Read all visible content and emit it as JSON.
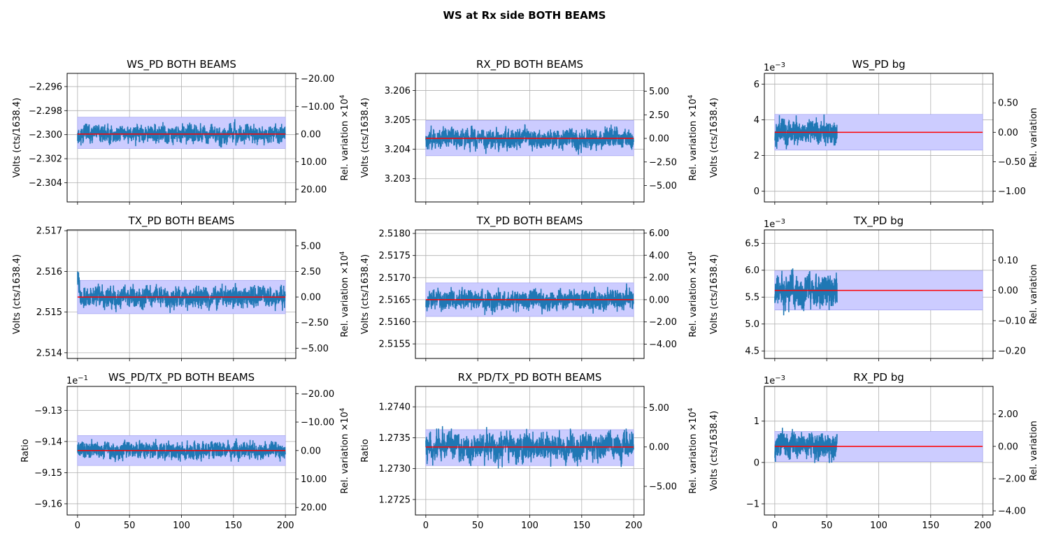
{
  "suptitle": "WS at Rx side BOTH BEAMS",
  "colors": {
    "series": "#1f77b4",
    "mean_line": "#ff0000",
    "band": "#ccccff",
    "band_edge": "#9999ee",
    "grid": "#b0b0b0"
  },
  "chart_data": [
    {
      "type": "line",
      "title": "WS_PD BOTH BEAMS",
      "ylabel": "Volts (cts/1638.4)",
      "ylabel_right": "Rel. variation ×10",
      "ylabel_right_exp": "4",
      "offset_text": "",
      "offset_exp": "",
      "xlim": [
        -10,
        210
      ],
      "ylim": [
        -2.3056,
        -2.2949
      ],
      "xticks": [
        0,
        50,
        100,
        150,
        200
      ],
      "xticklabels": [],
      "yticks": [
        -2.296,
        -2.298,
        -2.3,
        -2.302,
        -2.304
      ],
      "yticklabels": [
        "−2.296",
        "−2.298",
        "−2.300",
        "−2.302",
        "−2.304"
      ],
      "yticks_right_values": [
        -20,
        -10,
        0,
        10,
        20
      ],
      "yticks_right_labels": [
        "−20.00",
        "−10.00",
        "0.00",
        "10.00",
        "20.00"
      ],
      "right_scale": -4.35,
      "x_range": [
        0,
        200
      ],
      "mean": -2.29995,
      "band": [
        -2.30115,
        -2.29855
      ],
      "amplitude": 0.0013,
      "seed": 11
    },
    {
      "type": "line",
      "title": "RX_PD BOTH BEAMS",
      "ylabel": "Volts (cts/1638.4)",
      "ylabel_right": "Rel. variation ×10",
      "ylabel_right_exp": "4",
      "offset_text": "",
      "offset_exp": "",
      "xlim": [
        -10,
        210
      ],
      "ylim": [
        3.20221,
        3.20658
      ],
      "xticks": [
        0,
        50,
        100,
        150,
        200
      ],
      "xticklabels": [],
      "yticks": [
        3.206,
        3.205,
        3.204,
        3.203
      ],
      "yticklabels": [
        "3.206",
        "3.205",
        "3.204",
        "3.203"
      ],
      "yticks_right_values": [
        5,
        2.5,
        0,
        -2.5,
        -5
      ],
      "yticks_right_labels": [
        "5.00",
        "2.50",
        "0.00",
        "−2.50",
        "−5.00"
      ],
      "right_scale": 3.1214,
      "x_range": [
        0,
        200
      ],
      "mean": 3.20437,
      "band": [
        3.20378,
        3.20498
      ],
      "amplitude": 0.0006,
      "seed": 23
    },
    {
      "type": "line",
      "title": "WS_PD bg",
      "ylabel": "Volts (cts/1638.4)",
      "ylabel_right": "Rel. variation",
      "ylabel_right_exp": "",
      "offset_text": "1e",
      "offset_exp": "−3",
      "xlim": [
        -10,
        210
      ],
      "ylim": [
        -0.6,
        6.6
      ],
      "xticks": [
        0,
        50,
        100,
        150,
        200
      ],
      "xticklabels": [],
      "yticks": [
        6,
        4,
        2,
        0
      ],
      "yticklabels": [
        "6",
        "4",
        "2",
        "0"
      ],
      "yticks_right_values": [
        0.5,
        0,
        -0.5,
        -1.0
      ],
      "yticks_right_labels": [
        "0.50",
        "0.00",
        "−0.50",
        "−1.00"
      ],
      "right_scale": 0.00303,
      "x_range": [
        0,
        60
      ],
      "mean": 3.3,
      "band": [
        2.3,
        4.3
      ],
      "amplitude": 1.2,
      "seed": 37
    },
    {
      "type": "line",
      "title": "TX_PD BOTH BEAMS",
      "ylabel": "Volts (cts/1638.4)",
      "ylabel_right": "Rel. variation ×10",
      "ylabel_right_exp": "4",
      "offset_text": "",
      "offset_exp": "",
      "xlim": [
        -10,
        210
      ],
      "ylim": [
        2.51386,
        2.51702
      ],
      "xticks": [
        0,
        50,
        100,
        150,
        200
      ],
      "xticklabels": [],
      "yticks": [
        2.517,
        2.516,
        2.515,
        2.514
      ],
      "yticklabels": [
        "2.517",
        "2.516",
        "2.515",
        "2.514"
      ],
      "yticks_right_values": [
        5,
        2.5,
        0,
        -2.5,
        -5
      ],
      "yticks_right_labels": [
        "5.00",
        "2.50",
        "0.00",
        "−2.50",
        "−5.00"
      ],
      "right_scale": 3.975,
      "x_range": [
        0,
        200
      ],
      "mean": 2.51537,
      "band": [
        2.51496,
        2.51578
      ],
      "amplitude": 0.00045,
      "seed": 41
    },
    {
      "type": "line",
      "title": "TX_PD BOTH BEAMS",
      "ylabel": "Volts (cts/1638.4)",
      "ylabel_right": "Rel. variation ×10",
      "ylabel_right_exp": "4",
      "offset_text": "",
      "offset_exp": "",
      "xlim": [
        -10,
        210
      ],
      "ylim": [
        2.51517,
        2.51808
      ],
      "xticks": [
        0,
        50,
        100,
        150,
        200
      ],
      "xticklabels": [],
      "yticks": [
        2.518,
        2.5175,
        2.517,
        2.5165,
        2.516,
        2.5155
      ],
      "yticklabels": [
        "2.5180",
        "2.5175",
        "2.5170",
        "2.5165",
        "2.5160",
        "2.5155"
      ],
      "yticks_right_values": [
        6,
        4,
        2,
        0,
        -2,
        -4
      ],
      "yticks_right_labels": [
        "6.00",
        "4.00",
        "2.00",
        "0.00",
        "−2.00",
        "−4.00"
      ],
      "right_scale": 3.975,
      "x_range": [
        0,
        200
      ],
      "mean": 2.5165,
      "band": [
        2.51612,
        2.51688
      ],
      "amplitude": 0.0004,
      "seed": 53
    },
    {
      "type": "line",
      "title": "TX_PD bg",
      "ylabel": "Volts (cts/1638.4)",
      "ylabel_right": "Rel. variation",
      "ylabel_right_exp": "",
      "offset_text": "1e",
      "offset_exp": "−3",
      "xlim": [
        -10,
        210
      ],
      "ylim": [
        4.36,
        6.75
      ],
      "xticks": [
        0,
        50,
        100,
        150,
        200
      ],
      "xticklabels": [],
      "yticks": [
        6.5,
        6.0,
        5.5,
        5.0,
        4.5
      ],
      "yticklabels": [
        "6.5",
        "6.0",
        "5.5",
        "5.0",
        "4.5"
      ],
      "yticks_right_values": [
        0.1,
        0,
        -0.1,
        -0.2
      ],
      "yticks_right_labels": [
        "0.10",
        "0.00",
        "−0.10",
        "−0.20"
      ],
      "right_scale": 0.005625,
      "x_range": [
        0,
        60
      ],
      "mean": 5.625,
      "band": [
        5.26,
        5.99
      ],
      "amplitude": 0.55,
      "seed": 67
    },
    {
      "type": "line",
      "title": "WS_PD/TX_PD BOTH BEAMS",
      "ylabel": "Ratio",
      "ylabel_right": "Rel. variation ×10",
      "ylabel_right_exp": "4",
      "offset_text": "1e",
      "offset_exp": "−1",
      "xlim": [
        -10,
        210
      ],
      "ylim": [
        -9.1636,
        -9.1223
      ],
      "xticks": [
        0,
        50,
        100,
        150,
        200
      ],
      "xticklabels": [
        "0",
        "50",
        "100",
        "150",
        "200"
      ],
      "yticks": [
        -9.13,
        -9.14,
        -9.15,
        -9.16
      ],
      "yticklabels": [
        "−9.13",
        "−9.14",
        "−9.15",
        "−9.16"
      ],
      "yticks_right_values": [
        -20,
        -10,
        0,
        10,
        20
      ],
      "yticks_right_labels": [
        "−20.00",
        "−10.00",
        "0.00",
        "10.00",
        "20.00"
      ],
      "right_scale": -18.29,
      "x_range": [
        0,
        200
      ],
      "mean": -9.1429,
      "band": [
        -9.1477,
        -9.1381
      ],
      "amplitude": 0.0048,
      "seed": 71
    },
    {
      "type": "line",
      "title": "RX_PD/TX_PD BOTH BEAMS",
      "ylabel": "Ratio",
      "ylabel_right": "Rel. variation ×10",
      "ylabel_right_exp": "4",
      "offset_text": "",
      "offset_exp": "",
      "xlim": [
        -10,
        210
      ],
      "ylim": [
        1.27225,
        1.27433
      ],
      "xticks": [
        0,
        50,
        100,
        150,
        200
      ],
      "xticklabels": [
        "0",
        "50",
        "100",
        "150",
        "200"
      ],
      "yticks": [
        1.274,
        1.2735,
        1.273,
        1.2725
      ],
      "yticklabels": [
        "1.2740",
        "1.2735",
        "1.2730",
        "1.2725"
      ],
      "yticks_right_values": [
        5,
        0,
        -5
      ],
      "yticks_right_labels": [
        "5.00",
        "0.00",
        "−5.00"
      ],
      "right_scale": 1.2733,
      "x_range": [
        0,
        200
      ],
      "mean": 1.27335,
      "band": [
        1.27305,
        1.27363
      ],
      "amplitude": 0.0004,
      "seed": 83
    },
    {
      "type": "line",
      "title": "RX_PD bg",
      "ylabel": "Volts (cts/1638.4)",
      "ylabel_right": "Rel. variation",
      "ylabel_right_exp": "",
      "offset_text": "1e",
      "offset_exp": "−3",
      "xlim": [
        -10,
        210
      ],
      "ylim": [
        -1.27,
        1.84
      ],
      "xticks": [
        0,
        50,
        100,
        150,
        200
      ],
      "xticklabels": [
        "0",
        "50",
        "100",
        "150",
        "200"
      ],
      "yticks": [
        1,
        0,
        -1
      ],
      "yticklabels": [
        "1",
        "0",
        "−1"
      ],
      "yticks_right_values": [
        2,
        0,
        -2,
        -4
      ],
      "yticks_right_labels": [
        "2.00",
        "0.00",
        "−2.00",
        "−4.00"
      ],
      "right_scale": 0.00039,
      "x_range": [
        0,
        60
      ],
      "mean": 0.39,
      "band": [
        0.02,
        0.75
      ],
      "amplitude": 0.55,
      "seed": 97
    }
  ]
}
